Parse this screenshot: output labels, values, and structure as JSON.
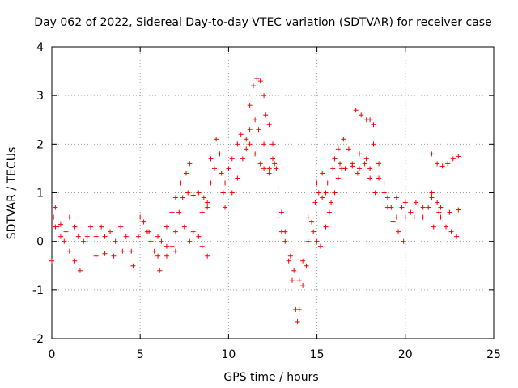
{
  "chart_data": {
    "type": "scatter",
    "title": "Day 062 of 2022, Sidereal Day-to-day VTEC variation (SDTVAR) for receiver case",
    "xlabel": "GPS time / hours",
    "ylabel": "SDTVAR / TECUs",
    "xlim": [
      0,
      25
    ],
    "ylim": [
      -2,
      4
    ],
    "xticks": [
      0,
      5,
      10,
      15,
      20,
      25
    ],
    "yticks": [
      -2,
      -1,
      0,
      1,
      2,
      3,
      4
    ],
    "grid": true,
    "marker": "+",
    "color": "#ff0000",
    "series": [
      {
        "name": "SDTVAR",
        "points": [
          [
            0.0,
            -0.4
          ],
          [
            0.1,
            0.5
          ],
          [
            0.2,
            0.7
          ],
          [
            0.3,
            0.3
          ],
          [
            0.5,
            0.1
          ],
          [
            0.7,
            0.0
          ],
          [
            1.0,
            -0.2
          ],
          [
            1.3,
            -0.4
          ],
          [
            1.6,
            -0.6
          ],
          [
            0.2,
            0.3
          ],
          [
            0.5,
            0.35
          ],
          [
            0.8,
            0.2
          ],
          [
            1.0,
            0.5
          ],
          [
            1.3,
            0.3
          ],
          [
            1.5,
            0.1
          ],
          [
            1.8,
            0.0
          ],
          [
            2.0,
            0.1
          ],
          [
            2.2,
            0.3
          ],
          [
            2.5,
            0.1
          ],
          [
            2.8,
            0.3
          ],
          [
            3.0,
            0.1
          ],
          [
            3.3,
            0.2
          ],
          [
            3.6,
            0.0
          ],
          [
            3.9,
            0.3
          ],
          [
            4.2,
            0.1
          ],
          [
            4.5,
            -0.2
          ],
          [
            4.6,
            -0.5
          ],
          [
            2.5,
            -0.3
          ],
          [
            3.0,
            -0.25
          ],
          [
            3.5,
            -0.3
          ],
          [
            4.0,
            -0.2
          ],
          [
            4.9,
            0.1
          ],
          [
            5.0,
            0.5
          ],
          [
            5.2,
            0.4
          ],
          [
            5.4,
            0.2
          ],
          [
            5.6,
            0.0
          ],
          [
            5.8,
            -0.2
          ],
          [
            6.0,
            -0.3
          ],
          [
            6.1,
            -0.6
          ],
          [
            5.5,
            0.2
          ],
          [
            6.0,
            0.1
          ],
          [
            6.5,
            -0.1
          ],
          [
            7.0,
            -0.2
          ],
          [
            6.2,
            0.0
          ],
          [
            6.5,
            0.3
          ],
          [
            6.8,
            0.6
          ],
          [
            7.0,
            0.9
          ],
          [
            7.3,
            1.2
          ],
          [
            7.6,
            1.4
          ],
          [
            7.8,
            1.6
          ],
          [
            6.5,
            -0.3
          ],
          [
            6.8,
            -0.1
          ],
          [
            7.0,
            0.2
          ],
          [
            7.2,
            0.6
          ],
          [
            7.4,
            0.9
          ],
          [
            7.7,
            1.0
          ],
          [
            8.0,
            0.95
          ],
          [
            8.3,
            1.0
          ],
          [
            8.6,
            0.9
          ],
          [
            8.8,
            0.7
          ],
          [
            7.5,
            0.3
          ],
          [
            7.8,
            0.0
          ],
          [
            8.0,
            0.2
          ],
          [
            8.3,
            0.1
          ],
          [
            8.5,
            -0.1
          ],
          [
            8.8,
            -0.3
          ],
          [
            8.5,
            0.6
          ],
          [
            8.8,
            0.8
          ],
          [
            9.0,
            1.2
          ],
          [
            9.2,
            1.5
          ],
          [
            9.0,
            1.7
          ],
          [
            9.3,
            2.1
          ],
          [
            9.5,
            1.8
          ],
          [
            9.6,
            1.4
          ],
          [
            9.7,
            1.0
          ],
          [
            9.8,
            0.7
          ],
          [
            9.8,
            1.2
          ],
          [
            10.0,
            1.5
          ],
          [
            10.2,
            1.7
          ],
          [
            10.5,
            2.0
          ],
          [
            10.7,
            2.2
          ],
          [
            11.0,
            2.1
          ],
          [
            11.2,
            2.3
          ],
          [
            11.5,
            2.5
          ],
          [
            11.7,
            2.3
          ],
          [
            12.0,
            2.0
          ],
          [
            12.3,
            1.5
          ],
          [
            10.2,
            1.0
          ],
          [
            10.5,
            1.3
          ],
          [
            10.8,
            1.7
          ],
          [
            11.0,
            1.9
          ],
          [
            11.2,
            2.0
          ],
          [
            11.2,
            2.8
          ],
          [
            11.4,
            3.2
          ],
          [
            11.6,
            3.35
          ],
          [
            11.8,
            3.3
          ],
          [
            12.0,
            3.0
          ],
          [
            12.1,
            2.6
          ],
          [
            12.3,
            2.4
          ],
          [
            12.5,
            2.0
          ],
          [
            12.6,
            1.6
          ],
          [
            12.8,
            1.1
          ],
          [
            13.0,
            0.6
          ],
          [
            13.2,
            0.2
          ],
          [
            11.5,
            1.8
          ],
          [
            11.8,
            1.6
          ],
          [
            12.0,
            1.5
          ],
          [
            12.3,
            1.4
          ],
          [
            12.5,
            1.7
          ],
          [
            12.7,
            1.5
          ],
          [
            12.8,
            0.5
          ],
          [
            13.0,
            0.2
          ],
          [
            13.2,
            0.0
          ],
          [
            13.4,
            -0.4
          ],
          [
            13.6,
            -0.8
          ],
          [
            13.8,
            -1.4
          ],
          [
            13.9,
            -1.65
          ],
          [
            14.0,
            -1.4
          ],
          [
            14.2,
            -0.9
          ],
          [
            14.4,
            -0.5
          ],
          [
            13.5,
            -0.3
          ],
          [
            13.7,
            -0.6
          ],
          [
            14.0,
            -0.8
          ],
          [
            14.2,
            -0.4
          ],
          [
            14.5,
            0.0
          ],
          [
            14.7,
            0.4
          ],
          [
            14.9,
            0.8
          ],
          [
            15.1,
            1.0
          ],
          [
            15.3,
            0.9
          ],
          [
            15.5,
            1.0
          ],
          [
            15.8,
            0.8
          ],
          [
            14.5,
            0.5
          ],
          [
            14.8,
            0.2
          ],
          [
            15.0,
            0.0
          ],
          [
            15.2,
            -0.1
          ],
          [
            15.5,
            0.3
          ],
          [
            15.7,
            0.6
          ],
          [
            16.0,
            1.0
          ],
          [
            16.2,
            1.3
          ],
          [
            16.4,
            1.5
          ],
          [
            15.0,
            1.2
          ],
          [
            15.3,
            1.4
          ],
          [
            15.6,
            1.2
          ],
          [
            15.9,
            1.5
          ],
          [
            16.2,
            1.9
          ],
          [
            16.5,
            2.1
          ],
          [
            16.8,
            1.9
          ],
          [
            17.0,
            1.6
          ],
          [
            17.3,
            1.4
          ],
          [
            16.0,
            1.7
          ],
          [
            16.3,
            1.6
          ],
          [
            16.6,
            1.5
          ],
          [
            17.0,
            1.55
          ],
          [
            17.4,
            1.5
          ],
          [
            17.8,
            1.7
          ],
          [
            18.0,
            1.5
          ],
          [
            17.2,
            2.7
          ],
          [
            17.5,
            2.6
          ],
          [
            17.8,
            2.5
          ],
          [
            18.0,
            2.5
          ],
          [
            18.2,
            2.4
          ],
          [
            17.4,
            1.8
          ],
          [
            17.7,
            1.6
          ],
          [
            18.0,
            1.3
          ],
          [
            18.3,
            1.0
          ],
          [
            18.2,
            2.0
          ],
          [
            18.5,
            1.6
          ],
          [
            18.8,
            1.2
          ],
          [
            19.0,
            0.9
          ],
          [
            19.2,
            0.7
          ],
          [
            19.5,
            0.5
          ],
          [
            18.5,
            1.3
          ],
          [
            18.8,
            1.0
          ],
          [
            19.0,
            0.7
          ],
          [
            19.3,
            0.4
          ],
          [
            19.6,
            0.2
          ],
          [
            19.9,
            0.0
          ],
          [
            19.5,
            0.9
          ],
          [
            19.8,
            0.7
          ],
          [
            20.0,
            0.5
          ],
          [
            20.3,
            0.6
          ],
          [
            20.6,
            0.8
          ],
          [
            21.0,
            0.5
          ],
          [
            21.3,
            0.7
          ],
          [
            21.6,
            0.3
          ],
          [
            21.9,
            0.6
          ],
          [
            20.0,
            0.8
          ],
          [
            20.5,
            0.5
          ],
          [
            21.0,
            0.7
          ],
          [
            21.5,
            0.9
          ],
          [
            22.0,
            0.7
          ],
          [
            22.5,
            0.6
          ],
          [
            23.0,
            0.65
          ],
          [
            21.5,
            1.0
          ],
          [
            21.8,
            0.8
          ],
          [
            22.0,
            0.5
          ],
          [
            22.3,
            0.3
          ],
          [
            22.6,
            0.2
          ],
          [
            22.9,
            0.1
          ],
          [
            21.5,
            1.8
          ],
          [
            21.8,
            1.6
          ],
          [
            22.1,
            1.55
          ],
          [
            22.4,
            1.6
          ],
          [
            22.7,
            1.7
          ],
          [
            23.0,
            1.75
          ]
        ]
      }
    ]
  }
}
